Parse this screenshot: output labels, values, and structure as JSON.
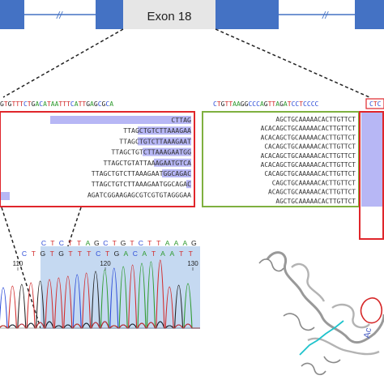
{
  "gene_model": {
    "exon_label": "Exon 18",
    "exon_color": "#4472c4",
    "highlight_color": "#e6e6e6",
    "break_mark": "//"
  },
  "reference_left": "GTGTTTCTGACATAATTTCATTGAGCGCA",
  "reference_right": "CTGTTAAGGCCCAGTTAGATCCTCCCC",
  "reference_right_boxed": "CTC",
  "left_reads": [
    "CTTAG",
    "TTAGCTGTCTTAAAGAA",
    "TTAGCTGTCTTAAAGAAT",
    "TTAGCTGTCTTAAAGAATGG",
    "TTAGCTGTATTAAAGAATGTCA",
    "TTAGCTGTCTTAAAGAATGGCAGAC",
    "TTAGCTGTCTTAAAGAATGGCAGAC",
    "AGATCGGAAGAGCGTCGTGTAGGGAA"
  ],
  "right_reads": [
    "AGCTGCAAAAACACTTGTTCT",
    "ACACAGCTGCAAAAACACTTGTTCT",
    "ACACAGCTGCAAAAACACTTGTTCT",
    "CACAGCTGCAAAAACACTTGTTCT",
    "ACACAGCTGCAAAAACACTTGTTCT",
    "ACACAGCTGCAAAAACACTTGTTCT",
    "CACAGCTGCAAAAACACTTGTTCT",
    "CAGCTGCAAAAACACTTGTTCT",
    "ACAGCTGCAAAAACACTTGTTCT",
    "AGCTGCAAAAACACTTGTTCT"
  ],
  "sanger": {
    "top_seq": "CTCTTAGCTGTCTTAAAG",
    "bottom_seq": "CTGTGTTTCTGACATAATT",
    "position_labels": [
      "110",
      "120",
      "130"
    ],
    "highlight_color": "#c5d9f1"
  },
  "protein_label": "Ac",
  "base_colors": {
    "A": "#2e9a2e",
    "C": "#2b4bd8",
    "G": "#222222",
    "T": "#d22b2b"
  },
  "frame_colors": {
    "left_box": "#e0262b",
    "right_box": "#7fb03f",
    "read_bar": "#b7b7f5"
  }
}
